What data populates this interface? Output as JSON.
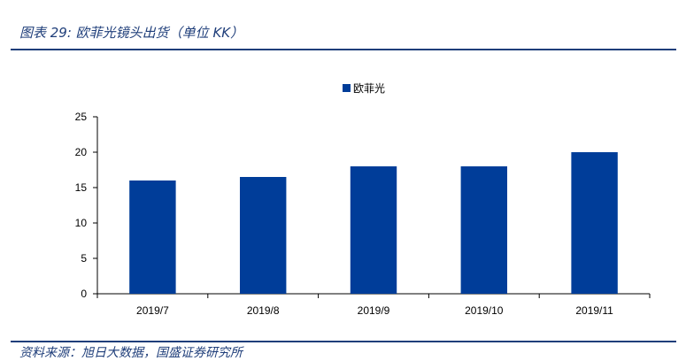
{
  "figure": {
    "title": "图表 29: 欧菲光镜头出货（单位 KK）",
    "source": "资料来源：旭日大数据，国盛证券研究所"
  },
  "colors": {
    "accent": "#1f3e7a",
    "bar": "#003d99"
  },
  "chart_data": {
    "type": "bar",
    "categories": [
      "2019/7",
      "2019/8",
      "2019/9",
      "2019/10",
      "2019/11"
    ],
    "series": [
      {
        "name": "欧菲光",
        "values": [
          16,
          16.5,
          18,
          18,
          20
        ]
      }
    ],
    "yticks": [
      0,
      5,
      10,
      15,
      20,
      25
    ],
    "ylim": [
      0,
      25
    ],
    "legend": "top-center",
    "grid": false
  }
}
